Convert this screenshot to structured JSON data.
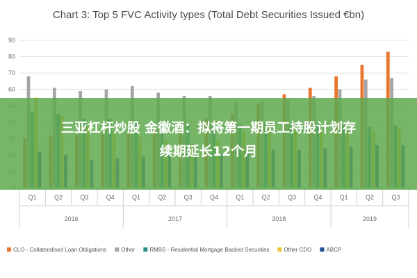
{
  "chart_data": {
    "type": "bar",
    "title": "Chart 3: Top 5 FVC Activity types (Total Debt Securities Issued €bn)",
    "xlabel": "",
    "ylabel": "",
    "ylim": [
      0,
      90
    ],
    "yticks": [
      0,
      10,
      20,
      30,
      40,
      50,
      60,
      70,
      80,
      90
    ],
    "grid": true,
    "legend_position": "bottom",
    "categories": [
      "Q1",
      "Q2",
      "Q3",
      "Q4",
      "Q1",
      "Q2",
      "Q3",
      "Q4",
      "Q1",
      "Q2",
      "Q3",
      "Q4",
      "Q1",
      "Q2",
      "Q3"
    ],
    "year_groups": [
      {
        "label": "2016",
        "count": 4
      },
      {
        "label": "2017",
        "count": 4
      },
      {
        "label": "2018",
        "count": 4
      },
      {
        "label": "2019",
        "count": 3
      }
    ],
    "series": [
      {
        "name": "CLO - Collateralised Loan Obligations",
        "color": "#e8762d",
        "values": [
          30,
          32,
          32,
          33,
          34,
          35,
          37,
          42,
          45,
          51,
          57,
          61,
          68,
          75,
          83
        ]
      },
      {
        "name": "Other",
        "color": "#a5a5a5",
        "values": [
          68,
          61,
          59,
          60,
          62,
          58,
          56,
          56,
          52,
          53,
          54,
          56,
          60,
          66,
          67
        ]
      },
      {
        "name": "RMBS - Residential Mortgage Backed Securities",
        "color": "#2e8b8b",
        "values": [
          46,
          45,
          42,
          42,
          41,
          40,
          39,
          38,
          39,
          40,
          40,
          39,
          38,
          37,
          38
        ]
      },
      {
        "name": "Other CDO",
        "color": "#f2c12e",
        "values": [
          55,
          44,
          37,
          34,
          31,
          29,
          27,
          29,
          34,
          39,
          37,
          36,
          36,
          35,
          36
        ]
      },
      {
        "name": "ABCP",
        "color": "#1f4e9a",
        "values": [
          22,
          20,
          17,
          18,
          19,
          20,
          20,
          21,
          22,
          23,
          23,
          24,
          25,
          26,
          26
        ]
      }
    ]
  },
  "overlay": {
    "line1": "三亚杠杆炒股 金徽酒：拟将第一期员工持股计划存",
    "line2": "续期延长12个月",
    "band_color": "#5fa84f"
  }
}
